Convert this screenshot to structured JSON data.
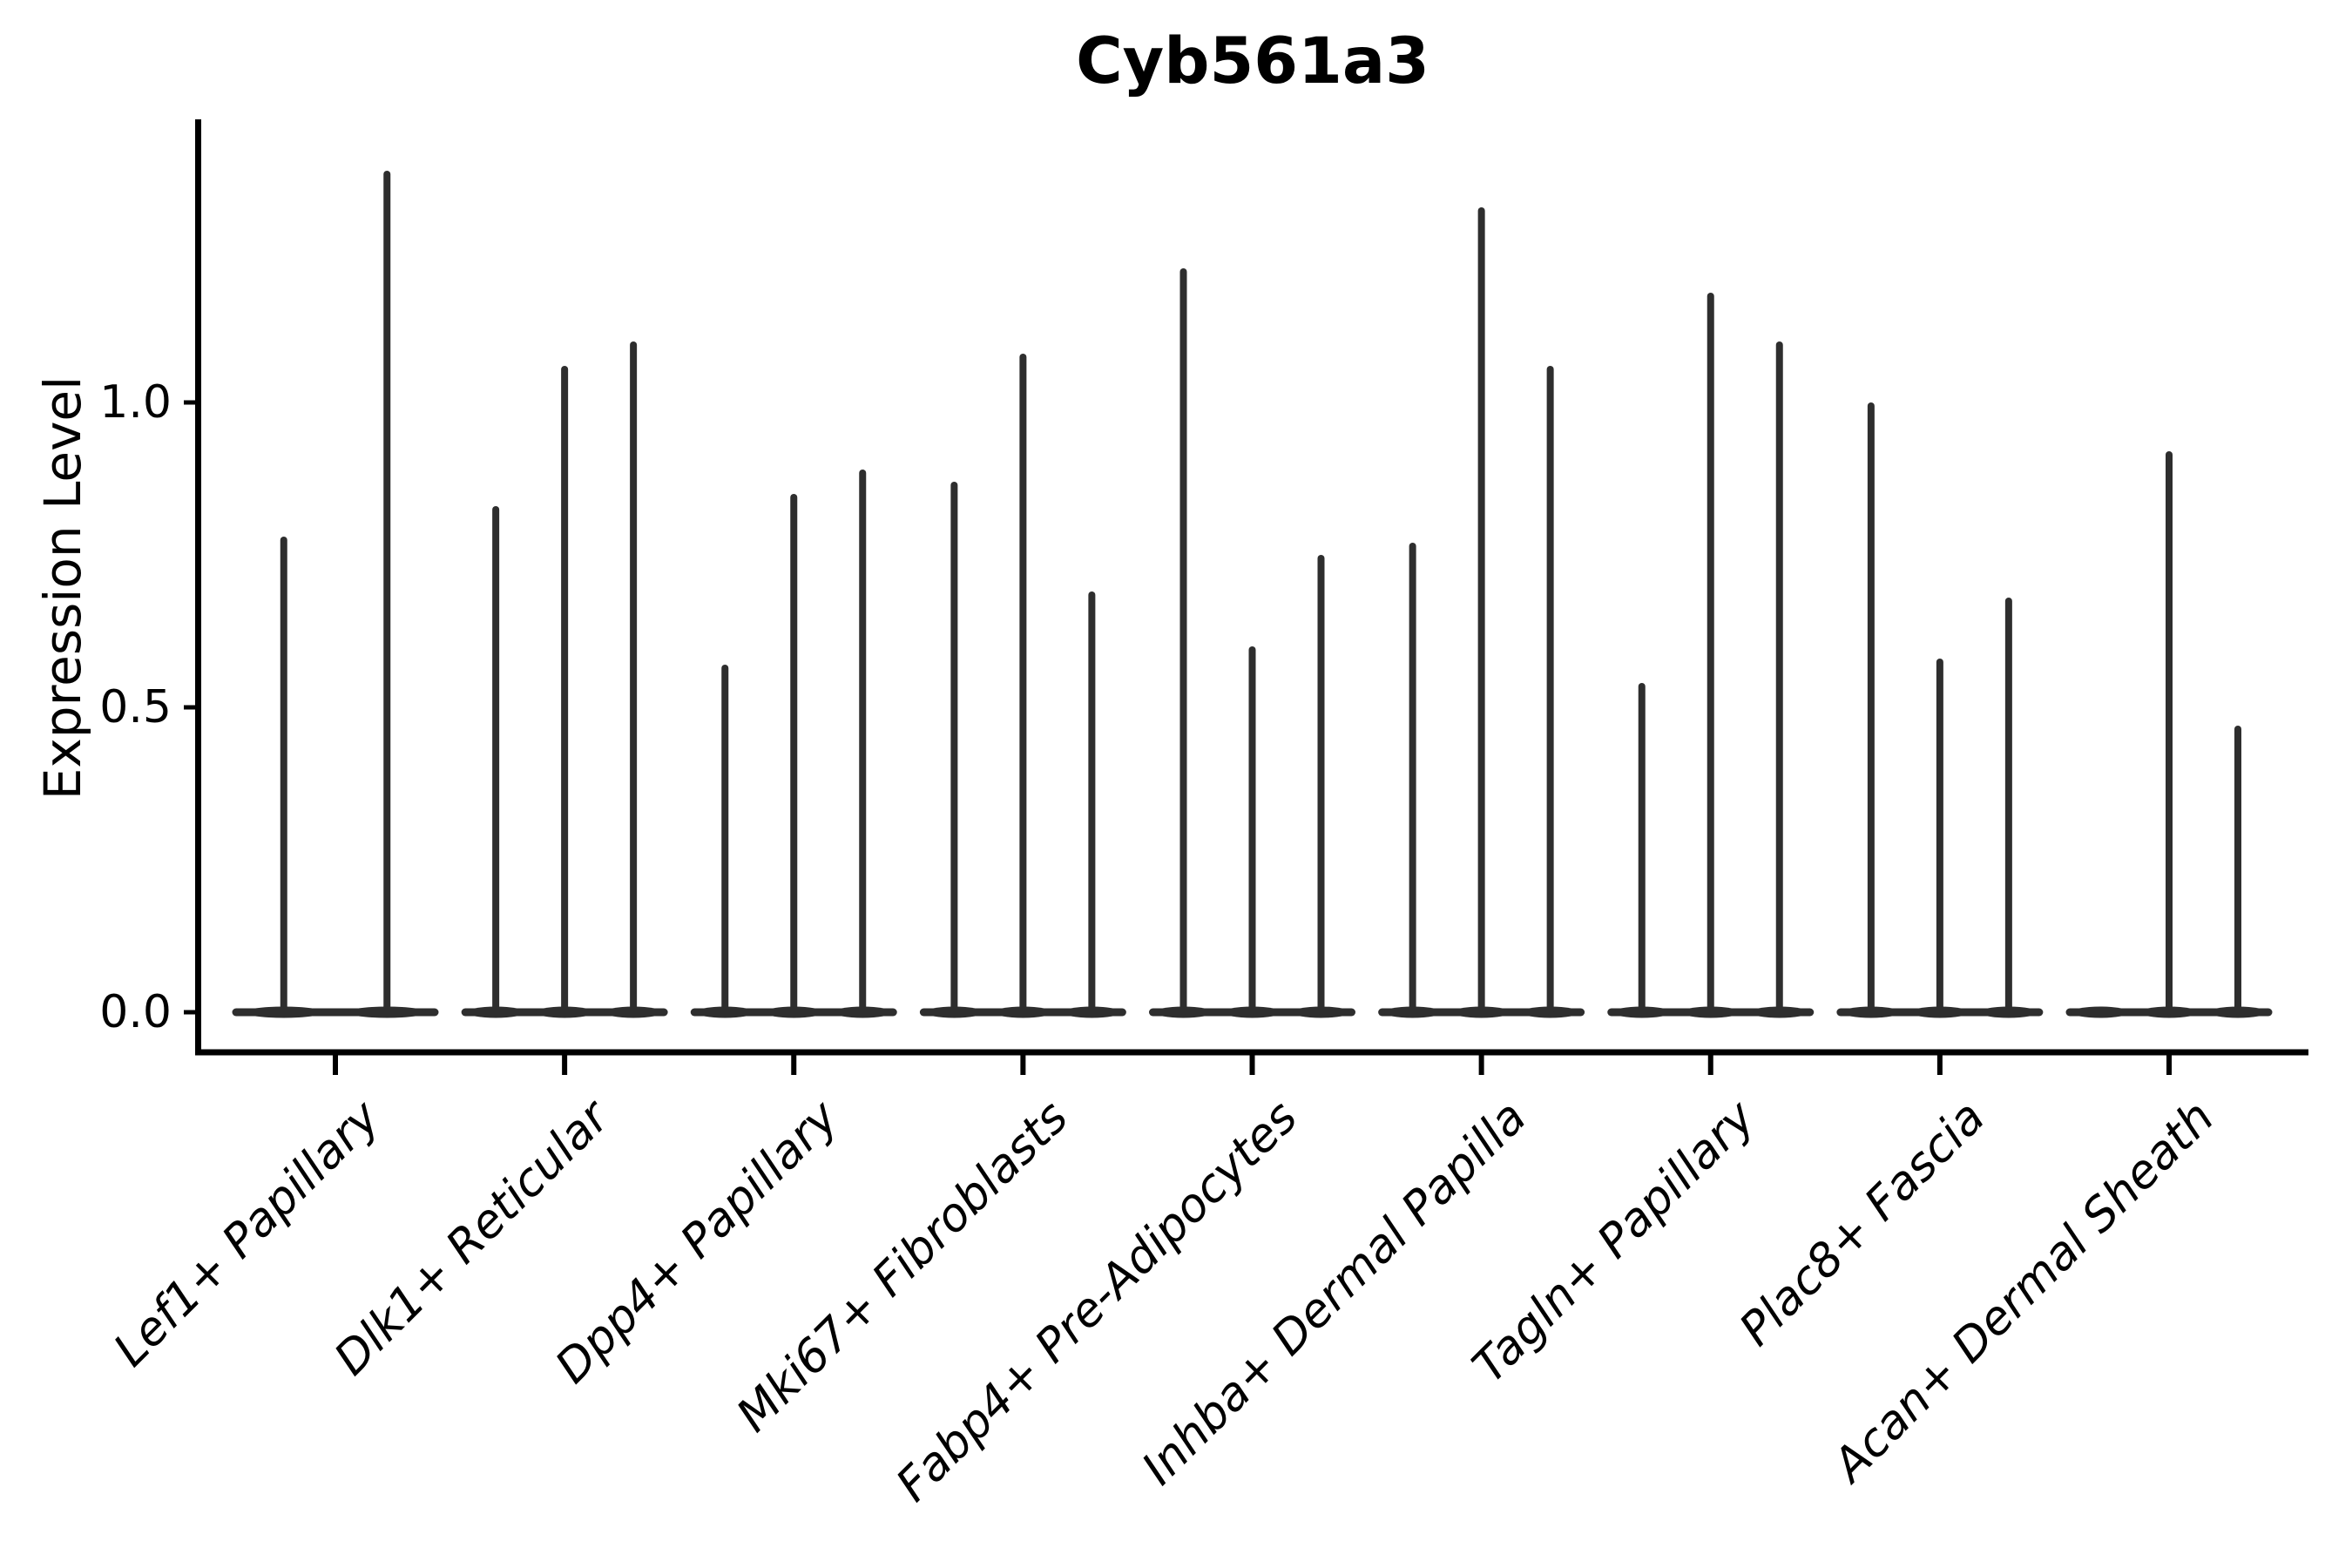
{
  "chart_data": {
    "type": "violin",
    "title": "Cyb561a3",
    "ylabel": "Expression Level",
    "xlabel": "",
    "categories": [
      "Lef1+ Papillary",
      "Dlk1+ Reticular",
      "Dpp4+ Papillary",
      "Mki67+ Fibroblasts",
      "Fabp4+ Pre-Adipocytes",
      "Inhba+ Dermal Papilla",
      "Tagln+ Papillary",
      "Plac8+ Fascia",
      "Acan+ Dermal Sheath"
    ],
    "violin_max_per_category": [
      [
        0.78,
        1.38
      ],
      [
        0.83,
        1.06,
        1.1
      ],
      [
        0.57,
        0.85,
        0.89
      ],
      [
        0.87,
        1.08,
        0.69
      ],
      [
        1.22,
        0.6,
        0.75
      ],
      [
        0.77,
        1.32,
        1.06
      ],
      [
        0.54,
        1.18,
        1.1
      ],
      [
        1.0,
        0.58,
        0.68
      ],
      [
        0.0,
        0.92,
        0.47
      ]
    ],
    "violin_note": "each category holds one thin violin per sample; value is the spike maximum in Expression Level units; 0.00 means a flat all-zero violin (base only, no spike)",
    "yticks": [
      "0.0",
      "0.5",
      "1.0"
    ],
    "ytick_values": [
      0.0,
      0.5,
      1.0
    ],
    "ylim": [
      -0.07,
      1.46
    ],
    "grid": false,
    "legend": null,
    "styles": {
      "violin_color": "#2e2e2e",
      "axis_color": "#000000",
      "background": "#ffffff"
    }
  }
}
